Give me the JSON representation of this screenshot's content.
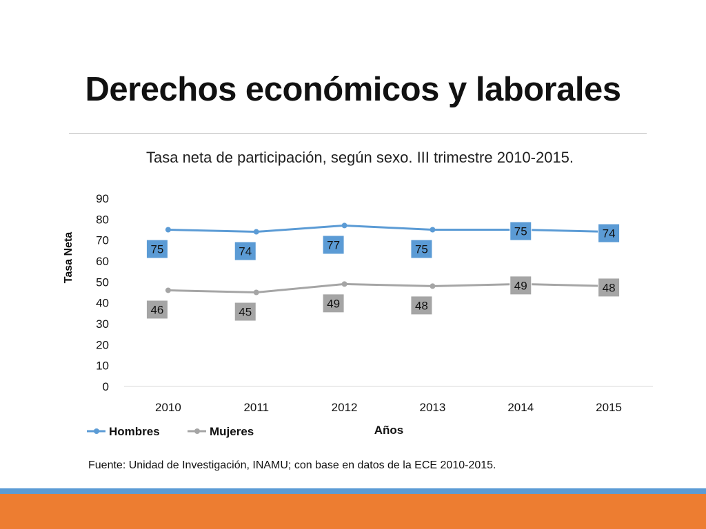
{
  "slide": {
    "title": "Derechos económicos y laborales",
    "source": "Fuente: Unidad de Investigación, INAMU; con base en datos de la ECE 2010-2015."
  },
  "colors": {
    "hombres": "#5b9bd5",
    "mujeres": "#a5a5a5",
    "label_hombres_fill": "#5b9bd5",
    "label_mujeres_fill": "#a5a5a5",
    "band_blue": "#5b9bd5",
    "band_orange": "#ed7d31"
  },
  "chart_data": {
    "type": "line",
    "title": "Tasa neta de participación, según sexo. III trimestre 2010-2015.",
    "xlabel": "Años",
    "ylabel": "Tasa Neta",
    "categories": [
      "2010",
      "2011",
      "2012",
      "2013",
      "2014",
      "2015"
    ],
    "ylim": [
      0,
      90
    ],
    "yticks": [
      0,
      10,
      20,
      30,
      40,
      50,
      60,
      70,
      80,
      90
    ],
    "grid": false,
    "legend": "bottom-left",
    "series": [
      {
        "name": "Hombres",
        "values": [
          75,
          74,
          77,
          75,
          75,
          74
        ],
        "labels": [
          "75",
          "74",
          "77",
          "75",
          "75",
          "74"
        ]
      },
      {
        "name": "Mujeres",
        "values": [
          46,
          45,
          49,
          48,
          49,
          48
        ],
        "labels": [
          "46",
          "45",
          "49",
          "48",
          "49",
          "48"
        ]
      }
    ]
  }
}
